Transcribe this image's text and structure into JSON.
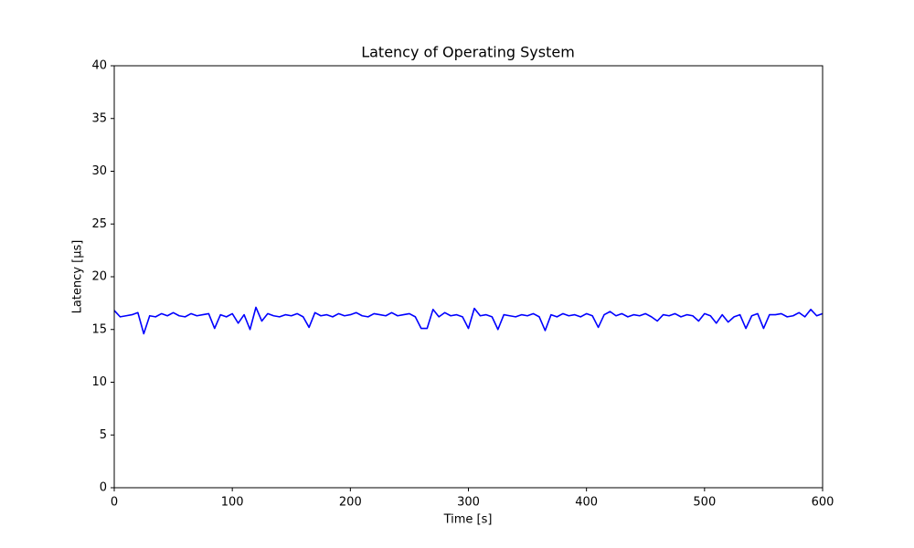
{
  "chart_data": {
    "type": "line",
    "title": "Latency of Operating System",
    "xlabel": "Time [s]",
    "ylabel": "Latency [µs]",
    "x": [
      0,
      5,
      10,
      15,
      20,
      25,
      30,
      35,
      40,
      45,
      50,
      55,
      60,
      65,
      70,
      75,
      80,
      85,
      90,
      95,
      100,
      105,
      110,
      115,
      120,
      125,
      130,
      135,
      140,
      145,
      150,
      155,
      160,
      165,
      170,
      175,
      180,
      185,
      190,
      195,
      200,
      205,
      210,
      215,
      220,
      225,
      230,
      235,
      240,
      245,
      250,
      255,
      260,
      265,
      270,
      275,
      280,
      285,
      290,
      295,
      300,
      305,
      310,
      315,
      320,
      325,
      330,
      335,
      340,
      345,
      350,
      355,
      360,
      365,
      370,
      375,
      380,
      385,
      390,
      395,
      400,
      405,
      410,
      415,
      420,
      425,
      430,
      435,
      440,
      445,
      450,
      455,
      460,
      465,
      470,
      475,
      480,
      485,
      490,
      495,
      500,
      505,
      510,
      515,
      520,
      525,
      530,
      535,
      540,
      545,
      550,
      555,
      560,
      565,
      570,
      575,
      580,
      585,
      590,
      595,
      600
    ],
    "series": [
      {
        "name": "Latency",
        "color": "#0000ff",
        "values": [
          16.8,
          16.2,
          16.3,
          16.4,
          16.6,
          14.6,
          16.3,
          16.2,
          16.5,
          16.3,
          16.6,
          16.3,
          16.2,
          16.5,
          16.3,
          16.4,
          16.5,
          15.1,
          16.4,
          16.2,
          16.5,
          15.6,
          16.4,
          15.0,
          17.1,
          15.8,
          16.5,
          16.3,
          16.2,
          16.4,
          16.3,
          16.5,
          16.2,
          15.2,
          16.6,
          16.3,
          16.4,
          16.2,
          16.5,
          16.3,
          16.4,
          16.6,
          16.3,
          16.2,
          16.5,
          16.4,
          16.3,
          16.6,
          16.3,
          16.4,
          16.5,
          16.2,
          15.1,
          15.1,
          16.9,
          16.2,
          16.6,
          16.3,
          16.4,
          16.2,
          15.1,
          17.0,
          16.3,
          16.4,
          16.2,
          15.0,
          16.4,
          16.3,
          16.2,
          16.4,
          16.3,
          16.5,
          16.2,
          14.9,
          16.4,
          16.2,
          16.5,
          16.3,
          16.4,
          16.2,
          16.5,
          16.3,
          15.2,
          16.4,
          16.7,
          16.3,
          16.5,
          16.2,
          16.4,
          16.3,
          16.5,
          16.2,
          15.8,
          16.4,
          16.3,
          16.5,
          16.2,
          16.4,
          16.3,
          15.8,
          16.5,
          16.3,
          15.6,
          16.4,
          15.7,
          16.2,
          16.4,
          15.1,
          16.3,
          16.5,
          15.1,
          16.4,
          16.4,
          16.5,
          16.2,
          16.3,
          16.6,
          16.2,
          16.9,
          16.3,
          16.5
        ]
      }
    ],
    "xlim": [
      0,
      600
    ],
    "xticks": [
      0,
      100,
      200,
      300,
      400,
      500,
      600
    ],
    "ylim": [
      0,
      40
    ],
    "yticks": [
      0,
      5,
      10,
      15,
      20,
      25,
      30,
      35,
      40
    ],
    "grid": false
  }
}
